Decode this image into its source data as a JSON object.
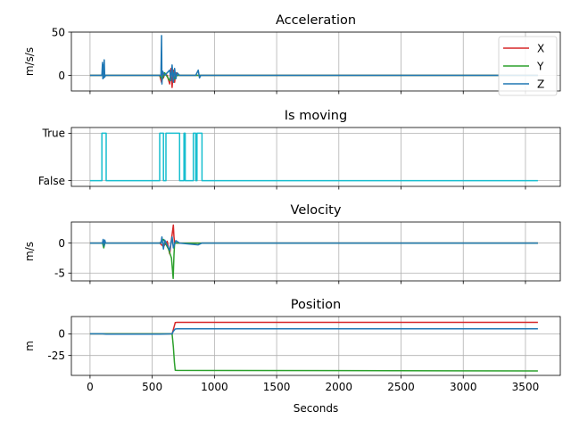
{
  "chart_data": [
    {
      "type": "line",
      "title": "Acceleration",
      "xlabel": "",
      "ylabel": "m/s/s",
      "xlim": [
        -150,
        3780
      ],
      "ylim": [
        -18,
        50
      ],
      "yticks": [
        {
          "v": 0,
          "label": "0"
        },
        {
          "v": 50,
          "label": "50"
        }
      ],
      "grid": true,
      "legend": "top-right",
      "series": [
        {
          "name": "X",
          "color": "#d62728",
          "points": [
            [
              0,
              0
            ],
            [
              560,
              0
            ],
            [
              575,
              -8
            ],
            [
              580,
              4
            ],
            [
              590,
              -3
            ],
            [
              600,
              2
            ],
            [
              620,
              0
            ],
            [
              640,
              -10
            ],
            [
              650,
              8
            ],
            [
              660,
              -14
            ],
            [
              670,
              6
            ],
            [
              680,
              -8
            ],
            [
              690,
              3
            ],
            [
              700,
              0
            ],
            [
              3600,
              0
            ]
          ]
        },
        {
          "name": "Y",
          "color": "#2ca02c",
          "points": [
            [
              0,
              0
            ],
            [
              560,
              0
            ],
            [
              580,
              -5
            ],
            [
              600,
              3
            ],
            [
              640,
              -6
            ],
            [
              660,
              5
            ],
            [
              680,
              -4
            ],
            [
              700,
              0
            ],
            [
              3600,
              0
            ]
          ]
        },
        {
          "name": "Z",
          "color": "#1f77b4",
          "points": [
            [
              0,
              0
            ],
            [
              95,
              0
            ],
            [
              100,
              15
            ],
            [
              103,
              -4
            ],
            [
              107,
              12
            ],
            [
              110,
              -3
            ],
            [
              114,
              18
            ],
            [
              118,
              -2
            ],
            [
              125,
              0
            ],
            [
              570,
              0
            ],
            [
              575,
              46
            ],
            [
              578,
              -10
            ],
            [
              582,
              5
            ],
            [
              600,
              0
            ],
            [
              640,
              6
            ],
            [
              650,
              -6
            ],
            [
              660,
              12
            ],
            [
              670,
              -8
            ],
            [
              680,
              8
            ],
            [
              690,
              -4
            ],
            [
              700,
              3
            ],
            [
              720,
              0
            ],
            [
              850,
              0
            ],
            [
              870,
              6
            ],
            [
              880,
              -3
            ],
            [
              890,
              0
            ],
            [
              3600,
              0
            ]
          ]
        }
      ]
    },
    {
      "type": "line",
      "title": "Is moving",
      "xlabel": "",
      "ylabel": "",
      "xlim": [
        -150,
        3780
      ],
      "ylim": [
        -0.12,
        1.12
      ],
      "yticks": [
        {
          "v": 1,
          "label": "True"
        },
        {
          "v": 0,
          "label": "False"
        }
      ],
      "grid": true,
      "series": [
        {
          "name": "",
          "color": "#17becf",
          "points": [
            [
              0,
              0
            ],
            [
              95,
              0
            ],
            [
              95,
              1
            ],
            [
              130,
              1
            ],
            [
              130,
              0
            ],
            [
              560,
              0
            ],
            [
              560,
              1
            ],
            [
              590,
              1
            ],
            [
              590,
              0
            ],
            [
              610,
              0
            ],
            [
              610,
              1
            ],
            [
              720,
              1
            ],
            [
              720,
              0
            ],
            [
              755,
              0
            ],
            [
              755,
              1
            ],
            [
              765,
              1
            ],
            [
              765,
              0
            ],
            [
              830,
              0
            ],
            [
              830,
              1
            ],
            [
              850,
              1
            ],
            [
              850,
              0
            ],
            [
              860,
              0
            ],
            [
              860,
              1
            ],
            [
              900,
              1
            ],
            [
              900,
              0
            ],
            [
              3600,
              0
            ]
          ]
        }
      ]
    },
    {
      "type": "line",
      "title": "Velocity",
      "xlabel": "",
      "ylabel": "m/s",
      "xlim": [
        -150,
        3780
      ],
      "ylim": [
        -6.3,
        3.5
      ],
      "yticks": [
        {
          "v": 0,
          "label": "0"
        },
        {
          "v": -5,
          "label": "-5"
        }
      ],
      "grid": true,
      "series": [
        {
          "name": "X",
          "color": "#d62728",
          "points": [
            [
              0,
              0
            ],
            [
              560,
              0
            ],
            [
              590,
              -0.6
            ],
            [
              620,
              0.3
            ],
            [
              640,
              -1.8
            ],
            [
              655,
              0.6
            ],
            [
              670,
              3.0
            ],
            [
              675,
              1.0
            ],
            [
              680,
              0
            ],
            [
              3600,
              0
            ]
          ]
        },
        {
          "name": "Y",
          "color": "#2ca02c",
          "points": [
            [
              0,
              0
            ],
            [
              100,
              0
            ],
            [
              110,
              -0.8
            ],
            [
              120,
              0
            ],
            [
              560,
              0
            ],
            [
              590,
              0.6
            ],
            [
              630,
              -1.0
            ],
            [
              655,
              -2.5
            ],
            [
              668,
              -5.9
            ],
            [
              675,
              -2.0
            ],
            [
              680,
              0
            ],
            [
              3600,
              0
            ]
          ]
        },
        {
          "name": "Z",
          "color": "#1f77b4",
          "points": [
            [
              0,
              0
            ],
            [
              100,
              0
            ],
            [
              105,
              0.6
            ],
            [
              112,
              -0.5
            ],
            [
              118,
              0.5
            ],
            [
              125,
              0
            ],
            [
              570,
              0
            ],
            [
              578,
              1.0
            ],
            [
              590,
              -1.0
            ],
            [
              600,
              0.5
            ],
            [
              640,
              -1.2
            ],
            [
              660,
              1.0
            ],
            [
              670,
              -0.8
            ],
            [
              690,
              0.4
            ],
            [
              720,
              0
            ],
            [
              870,
              -0.3
            ],
            [
              900,
              0
            ],
            [
              3600,
              0
            ]
          ]
        }
      ]
    },
    {
      "type": "line",
      "title": "Position",
      "xlabel": "Seconds",
      "ylabel": "m",
      "xlim": [
        -150,
        3780
      ],
      "ylim": [
        -48,
        20
      ],
      "yticks": [
        {
          "v": 0,
          "label": "0"
        },
        {
          "v": -25,
          "label": "-25"
        }
      ],
      "xticks": [
        0,
        500,
        1000,
        1500,
        2000,
        2500,
        3000,
        3500
      ],
      "grid": true,
      "series": [
        {
          "name": "X",
          "color": "#d62728",
          "points": [
            [
              0,
              0
            ],
            [
              660,
              0
            ],
            [
              670,
              5
            ],
            [
              685,
              13
            ],
            [
              700,
              13.3
            ],
            [
              3600,
              13.3
            ]
          ]
        },
        {
          "name": "Y",
          "color": "#2ca02c",
          "points": [
            [
              0,
              0
            ],
            [
              660,
              0
            ],
            [
              670,
              -15
            ],
            [
              678,
              -33
            ],
            [
              685,
              -42
            ],
            [
              700,
              -42.2
            ],
            [
              3600,
              -42.8
            ]
          ]
        },
        {
          "name": "Z",
          "color": "#1f77b4",
          "points": [
            [
              0,
              0
            ],
            [
              100,
              0
            ],
            [
              130,
              -0.4
            ],
            [
              560,
              -0.3
            ],
            [
              660,
              0
            ],
            [
              670,
              3
            ],
            [
              685,
              5.6
            ],
            [
              700,
              5.8
            ],
            [
              3600,
              5.8
            ]
          ]
        }
      ]
    }
  ]
}
